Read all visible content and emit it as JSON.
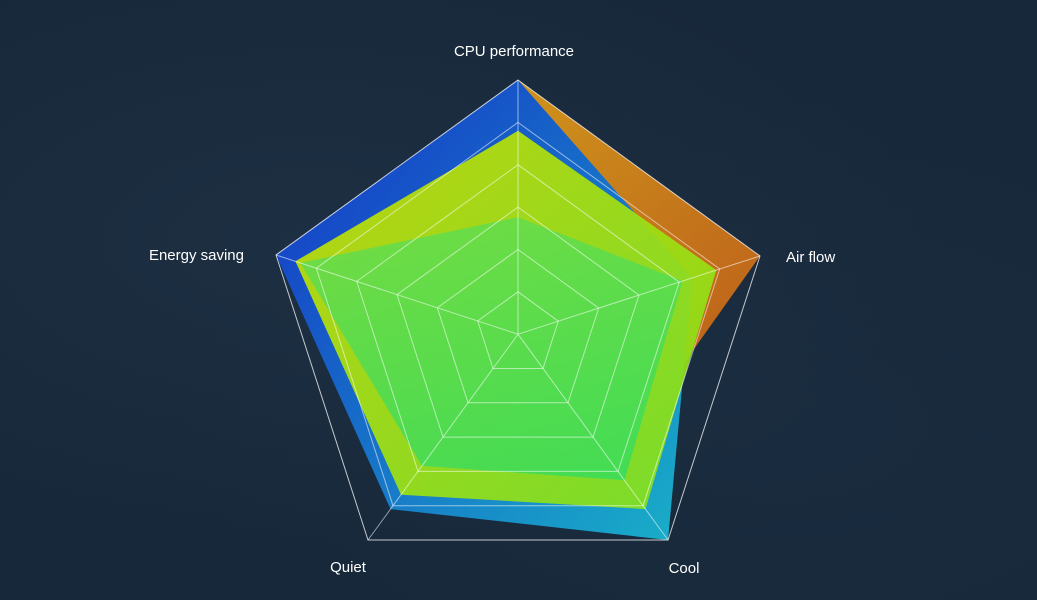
{
  "chart_data": {
    "type": "radar",
    "title": "",
    "axes": [
      "CPU performance",
      "Air flow",
      "Cool",
      "Quiet",
      "Energy saving"
    ],
    "range": [
      0,
      1
    ],
    "grid_levels": 6,
    "grid": true,
    "legend": "none",
    "series": [
      {
        "values": [
          1.0,
          1.0,
          0.63,
          0.74,
          1.0
        ],
        "color": "#c98a1a"
      },
      {
        "values": [
          1.0,
          0.72,
          1.0,
          0.85,
          1.0
        ],
        "color": "#1565d8"
      },
      {
        "values": [
          0.8,
          0.82,
          0.85,
          0.78,
          0.92
        ],
        "color": "#b8e010"
      },
      {
        "values": [
          0.46,
          0.68,
          0.71,
          0.64,
          0.9
        ],
        "color": "#22e08a"
      }
    ]
  }
}
